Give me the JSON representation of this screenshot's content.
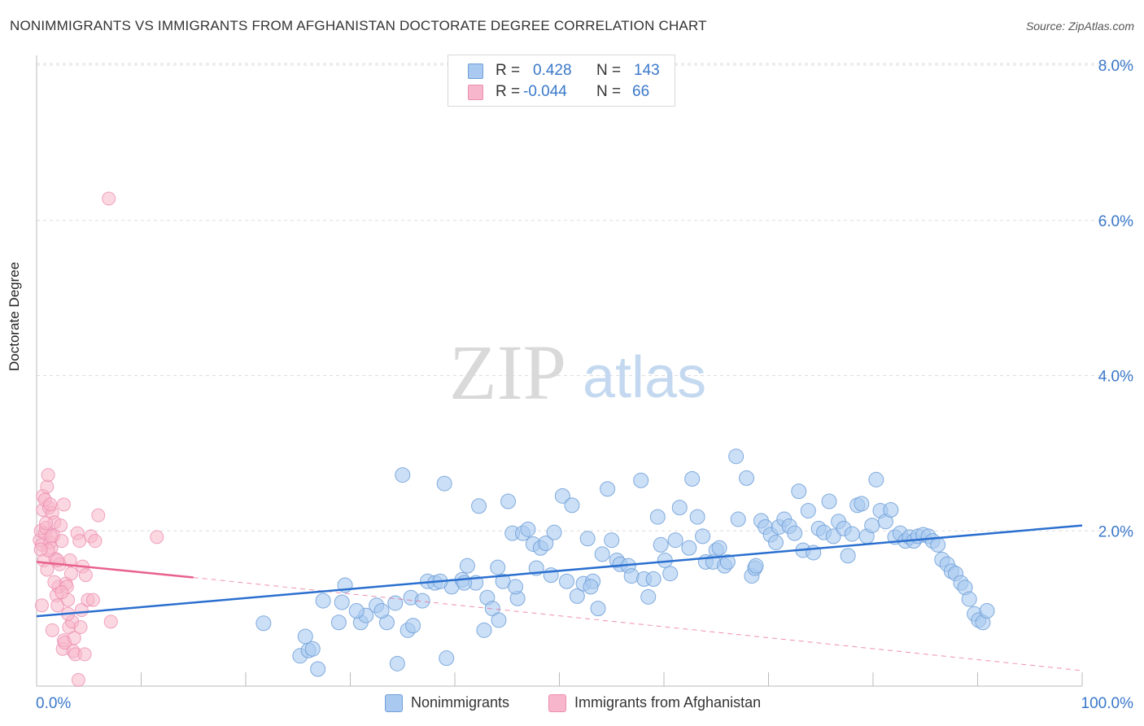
{
  "header": {
    "title": "NONIMMIGRANTS VS IMMIGRANTS FROM AFGHANISTAN DOCTORATE DEGREE CORRELATION CHART",
    "source": "Source: ZipAtlas.com"
  },
  "watermark": {
    "zip": "ZIP",
    "atlas": "atlas"
  },
  "legend": {
    "rows": [
      {
        "r_label": "R =",
        "r_value": "0.428",
        "n_label": "N =",
        "n_value": "143"
      },
      {
        "r_label": "R =",
        "r_value": "-0.044",
        "n_label": "N =",
        "n_value": "66"
      }
    ]
  },
  "bottom_legend": {
    "series1": "Nonimmigrants",
    "series2": "Immigrants from Afghanistan"
  },
  "colors": {
    "blue_fill": "#a9c9f0",
    "blue_stroke": "#6f9fd8",
    "blue_line": "#2a6fcf",
    "pink_fill": "#f7b6cb",
    "pink_stroke": "#ec8fb0",
    "pink_line": "#e8618c",
    "tick_label": "#3a78c9",
    "grid": "#dddddd"
  },
  "chart_data": {
    "type": "scatter",
    "title": "NONIMMIGRANTS VS IMMIGRANTS FROM AFGHANISTAN DOCTORATE DEGREE CORRELATION CHART",
    "xlabel": "",
    "ylabel": "Doctorate Degree",
    "xlim": [
      0,
      100
    ],
    "ylim": [
      0,
      8.0
    ],
    "x_tick_labels": [
      "0.0%",
      "100.0%"
    ],
    "y_ticks": [
      2.0,
      4.0,
      6.0,
      8.0
    ],
    "y_tick_labels": [
      "2.0%",
      "4.0%",
      "6.0%",
      "8.0%"
    ],
    "series": [
      {
        "name": "Nonimmigrants",
        "r": 0.428,
        "n": 143,
        "trend": {
          "x": [
            0,
            100
          ],
          "y": [
            0.9,
            2.07
          ]
        },
        "points": [
          [
            21.7,
            0.81
          ],
          [
            25.2,
            0.39
          ],
          [
            25.7,
            0.64
          ],
          [
            26.0,
            0.46
          ],
          [
            26.4,
            0.48
          ],
          [
            26.9,
            0.22
          ],
          [
            27.4,
            1.1
          ],
          [
            28.9,
            0.82
          ],
          [
            29.2,
            1.08
          ],
          [
            29.5,
            1.3
          ],
          [
            31.0,
            0.82
          ],
          [
            31.5,
            0.91
          ],
          [
            32.5,
            1.04
          ],
          [
            33.5,
            0.82
          ],
          [
            34.5,
            0.29
          ],
          [
            35.0,
            2.72
          ],
          [
            35.5,
            0.72
          ],
          [
            36.0,
            0.78
          ],
          [
            35.8,
            1.14
          ],
          [
            36.9,
            1.1
          ],
          [
            37.4,
            1.35
          ],
          [
            38.1,
            1.33
          ],
          [
            39.0,
            2.61
          ],
          [
            39.2,
            0.36
          ],
          [
            39.7,
            1.28
          ],
          [
            40.7,
            1.37
          ],
          [
            41.2,
            1.55
          ],
          [
            42.0,
            1.33
          ],
          [
            42.3,
            2.32
          ],
          [
            42.8,
            0.72
          ],
          [
            43.1,
            1.14
          ],
          [
            43.6,
            1.0
          ],
          [
            44.1,
            1.53
          ],
          [
            44.6,
            1.35
          ],
          [
            45.1,
            2.38
          ],
          [
            45.5,
            1.97
          ],
          [
            46.0,
            1.13
          ],
          [
            46.5,
            1.97
          ],
          [
            47.0,
            2.02
          ],
          [
            47.5,
            1.83
          ],
          [
            47.8,
            1.52
          ],
          [
            48.2,
            1.78
          ],
          [
            48.7,
            1.84
          ],
          [
            49.5,
            1.98
          ],
          [
            50.3,
            2.45
          ],
          [
            50.7,
            1.35
          ],
          [
            51.2,
            2.33
          ],
          [
            51.7,
            1.16
          ],
          [
            52.3,
            1.32
          ],
          [
            52.7,
            1.9
          ],
          [
            53.2,
            1.35
          ],
          [
            53.7,
            1.0
          ],
          [
            54.1,
            1.7
          ],
          [
            54.6,
            2.54
          ],
          [
            55.0,
            1.88
          ],
          [
            55.5,
            1.62
          ],
          [
            55.8,
            1.57
          ],
          [
            56.6,
            1.55
          ],
          [
            56.9,
            1.42
          ],
          [
            57.8,
            2.65
          ],
          [
            58.1,
            1.38
          ],
          [
            58.5,
            1.15
          ],
          [
            59.0,
            1.38
          ],
          [
            59.4,
            2.18
          ],
          [
            59.7,
            1.82
          ],
          [
            60.1,
            1.62
          ],
          [
            60.6,
            1.45
          ],
          [
            61.1,
            1.88
          ],
          [
            61.5,
            2.3
          ],
          [
            62.4,
            1.78
          ],
          [
            62.7,
            2.67
          ],
          [
            63.2,
            2.18
          ],
          [
            63.7,
            1.93
          ],
          [
            64.0,
            1.6
          ],
          [
            64.7,
            1.6
          ],
          [
            65.0,
            1.75
          ],
          [
            65.3,
            1.78
          ],
          [
            65.8,
            1.55
          ],
          [
            66.1,
            1.6
          ],
          [
            66.9,
            2.96
          ],
          [
            67.1,
            2.15
          ],
          [
            67.9,
            2.68
          ],
          [
            68.4,
            1.42
          ],
          [
            68.7,
            1.52
          ],
          [
            69.3,
            2.13
          ],
          [
            69.7,
            2.05
          ],
          [
            70.2,
            1.95
          ],
          [
            70.7,
            1.85
          ],
          [
            71.0,
            2.05
          ],
          [
            71.5,
            2.15
          ],
          [
            72.0,
            2.06
          ],
          [
            72.5,
            1.97
          ],
          [
            72.9,
            2.51
          ],
          [
            73.3,
            1.75
          ],
          [
            73.8,
            2.26
          ],
          [
            74.3,
            1.72
          ],
          [
            74.8,
            2.03
          ],
          [
            75.3,
            1.98
          ],
          [
            75.8,
            2.38
          ],
          [
            76.2,
            1.93
          ],
          [
            76.7,
            2.12
          ],
          [
            77.2,
            2.03
          ],
          [
            77.6,
            1.68
          ],
          [
            78.0,
            1.96
          ],
          [
            78.5,
            2.33
          ],
          [
            78.9,
            2.35
          ],
          [
            79.4,
            1.93
          ],
          [
            79.9,
            2.07
          ],
          [
            80.3,
            2.66
          ],
          [
            80.7,
            2.26
          ],
          [
            81.2,
            2.12
          ],
          [
            81.7,
            2.27
          ],
          [
            82.1,
            1.92
          ],
          [
            82.6,
            1.97
          ],
          [
            83.1,
            1.87
          ],
          [
            83.5,
            1.92
          ],
          [
            83.9,
            1.87
          ],
          [
            84.3,
            1.93
          ],
          [
            84.8,
            1.95
          ],
          [
            85.3,
            1.93
          ],
          [
            85.7,
            1.87
          ],
          [
            86.2,
            1.82
          ],
          [
            86.6,
            1.63
          ],
          [
            87.1,
            1.57
          ],
          [
            87.5,
            1.48
          ],
          [
            87.9,
            1.45
          ],
          [
            88.4,
            1.33
          ],
          [
            88.8,
            1.27
          ],
          [
            89.2,
            1.12
          ],
          [
            89.7,
            0.93
          ],
          [
            90.1,
            0.85
          ],
          [
            90.5,
            0.82
          ],
          [
            90.9,
            0.97
          ],
          [
            68.8,
            1.55
          ],
          [
            53.0,
            1.28
          ],
          [
            49.2,
            1.43
          ],
          [
            45.8,
            1.28
          ],
          [
            40.9,
            1.33
          ],
          [
            38.6,
            1.35
          ],
          [
            34.3,
            1.07
          ],
          [
            33.0,
            0.97
          ],
          [
            30.6,
            0.97
          ],
          [
            44.2,
            0.85
          ]
        ]
      },
      {
        "name": "Immigrants from Afghanistan",
        "r": -0.044,
        "n": 66,
        "trend": {
          "x": [
            0,
            15
          ],
          "y": [
            1.6,
            1.4
          ],
          "dashed_extension": {
            "x": [
              15,
              100
            ],
            "y": [
              1.4,
              0.2
            ]
          }
        },
        "points": [
          [
            0.3,
            1.88
          ],
          [
            0.4,
            2.0
          ],
          [
            0.5,
            1.82
          ],
          [
            0.6,
            2.27
          ],
          [
            0.6,
            2.45
          ],
          [
            0.7,
            1.62
          ],
          [
            0.8,
            1.97
          ],
          [
            0.9,
            2.04
          ],
          [
            1.0,
            2.57
          ],
          [
            1.1,
            2.72
          ],
          [
            1.2,
            2.3
          ],
          [
            1.3,
            1.85
          ],
          [
            1.4,
            1.78
          ],
          [
            1.5,
            2.23
          ],
          [
            1.6,
            1.94
          ],
          [
            1.7,
            2.11
          ],
          [
            1.8,
            1.64
          ],
          [
            1.9,
            1.17
          ],
          [
            2.0,
            1.04
          ],
          [
            2.1,
            1.28
          ],
          [
            2.2,
            1.57
          ],
          [
            2.3,
            2.07
          ],
          [
            2.4,
            1.87
          ],
          [
            2.5,
            0.48
          ],
          [
            2.6,
            0.59
          ],
          [
            2.7,
            0.56
          ],
          [
            2.8,
            1.32
          ],
          [
            2.9,
            1.28
          ],
          [
            3.0,
            1.11
          ],
          [
            3.1,
            0.76
          ],
          [
            3.2,
            1.62
          ],
          [
            3.4,
            0.83
          ],
          [
            3.5,
            0.45
          ],
          [
            3.6,
            0.62
          ],
          [
            3.7,
            0.41
          ],
          [
            3.9,
            1.97
          ],
          [
            4.0,
            0.08
          ],
          [
            4.1,
            1.87
          ],
          [
            4.2,
            0.76
          ],
          [
            4.3,
            0.98
          ],
          [
            4.4,
            1.54
          ],
          [
            4.6,
            0.41
          ],
          [
            4.7,
            1.43
          ],
          [
            4.9,
            1.11
          ],
          [
            5.2,
            1.93
          ],
          [
            5.4,
            1.11
          ],
          [
            5.6,
            1.87
          ],
          [
            5.9,
            2.2
          ],
          [
            6.9,
            6.28
          ],
          [
            7.1,
            0.83
          ],
          [
            11.5,
            1.92
          ],
          [
            0.5,
            1.04
          ],
          [
            0.8,
            2.4
          ],
          [
            1.0,
            1.5
          ],
          [
            1.4,
            1.93
          ],
          [
            1.7,
            1.34
          ],
          [
            2.4,
            1.21
          ],
          [
            3.0,
            0.93
          ],
          [
            0.9,
            2.1
          ],
          [
            1.3,
            2.34
          ],
          [
            2.0,
            1.62
          ],
          [
            2.6,
            2.34
          ],
          [
            3.3,
            1.45
          ],
          [
            1.1,
            1.75
          ],
          [
            0.4,
            1.76
          ],
          [
            1.5,
            0.72
          ]
        ]
      }
    ]
  }
}
